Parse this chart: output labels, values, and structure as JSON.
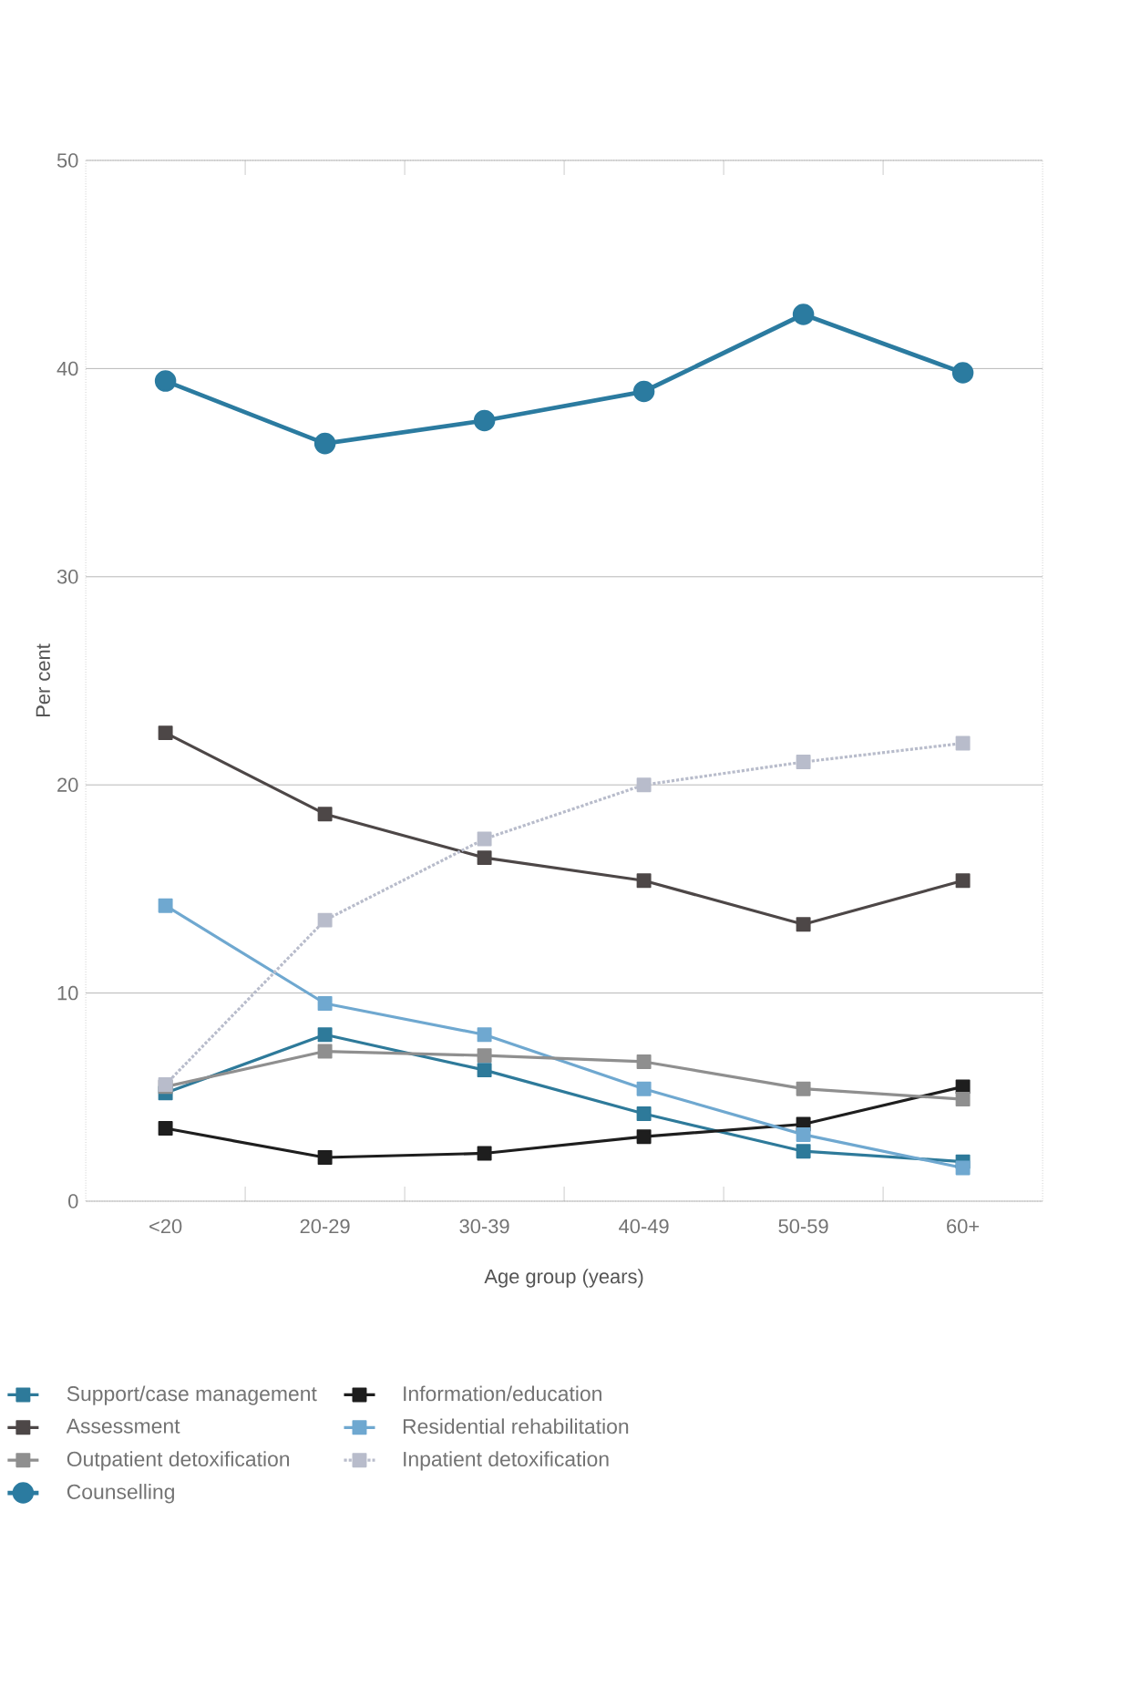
{
  "chart_data": {
    "type": "line",
    "xlabel": "Age group (years)",
    "ylabel": "Per cent",
    "categories": [
      "<20",
      "20-29",
      "30-39",
      "40-49",
      "50-59",
      "60+"
    ],
    "ylim": [
      0,
      50
    ],
    "yticks": [
      0,
      10,
      20,
      30,
      40,
      50
    ],
    "grid": "y",
    "legend": "bottom",
    "series": [
      {
        "name": "Support/case management",
        "color": "#2e7a9a",
        "marker": "square",
        "line_style": "solid",
        "values": [
          5.2,
          8.0,
          6.3,
          4.2,
          2.4,
          1.9
        ]
      },
      {
        "name": "Information/education",
        "color": "#1e1e1e",
        "marker": "square",
        "line_style": "solid",
        "values": [
          3.5,
          2.1,
          2.3,
          3.1,
          3.7,
          5.5
        ]
      },
      {
        "name": "Assessment",
        "color": "#4d4747",
        "marker": "square",
        "line_style": "solid",
        "values": [
          22.5,
          18.6,
          16.5,
          15.4,
          13.3,
          15.4
        ]
      },
      {
        "name": "Residential rehabilitation",
        "color": "#6fa8d0",
        "marker": "square",
        "line_style": "solid",
        "values": [
          14.2,
          9.5,
          8.0,
          5.4,
          3.2,
          1.6
        ]
      },
      {
        "name": "Outpatient detoxification",
        "color": "#8f8f8f",
        "marker": "square",
        "line_style": "solid",
        "values": [
          5.5,
          7.2,
          7.0,
          6.7,
          5.4,
          4.9
        ]
      },
      {
        "name": "Inpatient detoxification",
        "color": "#b8bccb",
        "marker": "square",
        "line_style": "dotted",
        "values": [
          5.6,
          13.5,
          17.4,
          20.0,
          21.1,
          22.0
        ]
      },
      {
        "name": "Counselling",
        "color": "#2b7ba0",
        "marker": "circle",
        "line_style": "solid",
        "values": [
          39.4,
          36.4,
          37.5,
          38.9,
          42.6,
          39.8
        ]
      }
    ]
  }
}
